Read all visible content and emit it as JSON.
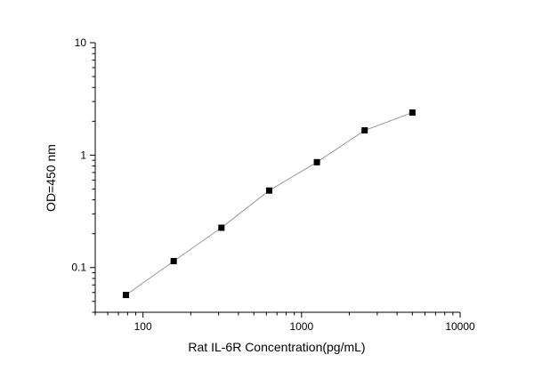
{
  "chart_data": {
    "type": "line",
    "title": "",
    "xlabel": "Rat IL-6R Concentration(pg/mL)",
    "ylabel": "OD=450 nm",
    "xscale": "log",
    "yscale": "log",
    "xlim": [
      50,
      10000
    ],
    "ylim": [
      0.04,
      10
    ],
    "xticks": [
      100,
      1000,
      10000
    ],
    "xtick_labels": [
      "100",
      "1000",
      "10000"
    ],
    "yticks": [
      0.1,
      1,
      10
    ],
    "ytick_labels": [
      "0.1",
      "1",
      "10"
    ],
    "grid": false,
    "marker": "square",
    "line_color": "#999999",
    "marker_color": "#000000",
    "series": [
      {
        "x": [
          78.125,
          156.25,
          312.5,
          625,
          1250,
          2500,
          5000
        ],
        "y": [
          0.057,
          0.114,
          0.226,
          0.484,
          0.865,
          1.66,
          2.39
        ]
      }
    ]
  }
}
